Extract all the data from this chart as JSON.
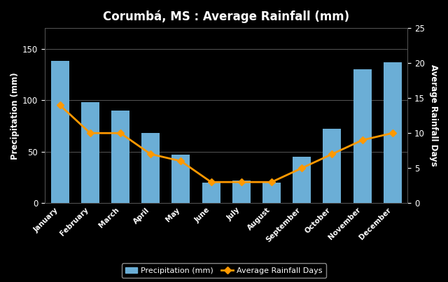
{
  "title": "Corumbá, MS : Average Rainfall (mm)",
  "months": [
    "January",
    "February",
    "March",
    "April",
    "May",
    "June",
    "July",
    "August",
    "September",
    "October",
    "November",
    "December"
  ],
  "precipitation": [
    138,
    98,
    90,
    68,
    47,
    20,
    22,
    20,
    45,
    72,
    130,
    137
  ],
  "rainfall_days": [
    14,
    10,
    10,
    7,
    6,
    3,
    3,
    3,
    5,
    7,
    9,
    10
  ],
  "bar_color": "#6baed6",
  "line_color": "#ff9900",
  "marker_color": "#ff9900",
  "background_color": "#000000",
  "text_color": "#ffffff",
  "grid_color": "#555555",
  "ylabel_left": "Precipitation (mm)",
  "ylabel_right": "Average Rainfall Days",
  "legend_precip": "Precipitation (mm)",
  "legend_days": "Average Rainfall Days",
  "ylim_left": [
    0,
    170
  ],
  "ylim_right": [
    0,
    25
  ],
  "yticks_left": [
    0,
    50,
    100,
    150
  ],
  "yticks_right": [
    0,
    5,
    10,
    15,
    20,
    25
  ]
}
